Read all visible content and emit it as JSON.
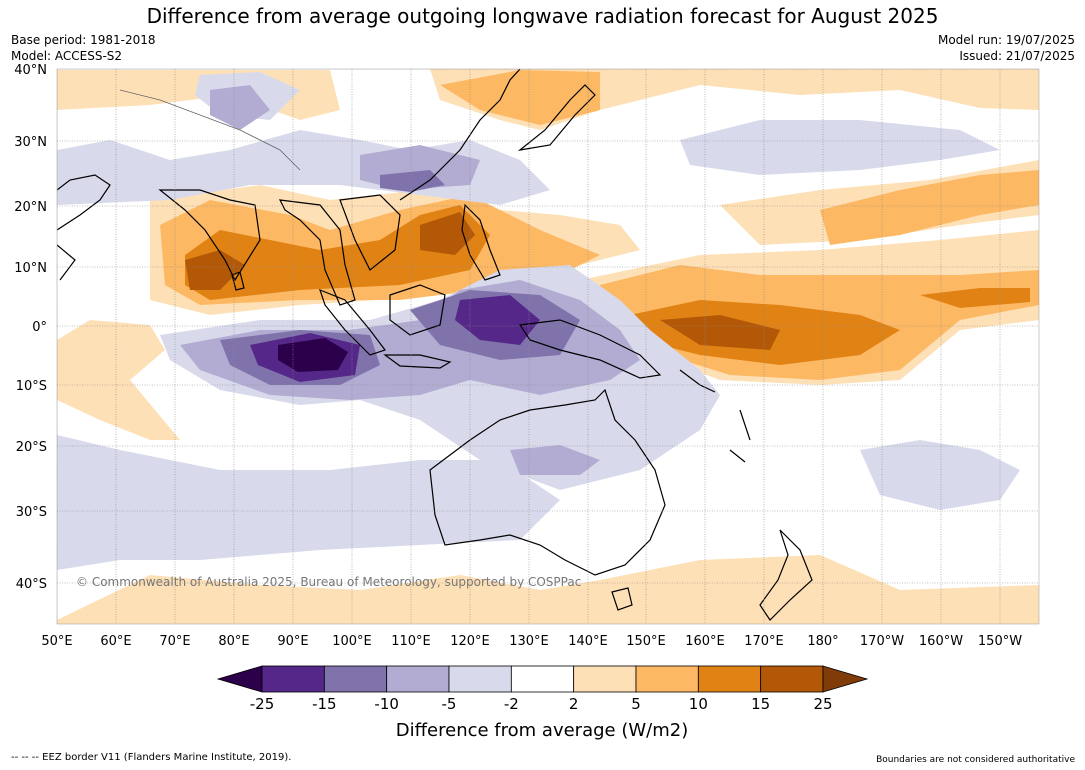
{
  "title": "Difference from average outgoing longwave radiation forecast for August 2025",
  "meta_left": [
    "Base period: 1981-2018",
    "Model: ACCESS-S2"
  ],
  "meta_right": [
    "Model run: 19/07/2025",
    "Issued: 21/07/2025"
  ],
  "map": {
    "lat_labels": [
      "40°N",
      "30°N",
      "20°N",
      "10°N",
      "0°",
      "10°S",
      "20°S",
      "30°S",
      "40°S"
    ],
    "lon_labels": [
      "50°E",
      "60°E",
      "70°E",
      "80°E",
      "90°E",
      "100°E",
      "110°E",
      "120°E",
      "130°E",
      "140°E",
      "150°E",
      "160°E",
      "170°E",
      "180°",
      "170°W",
      "160°W",
      "150°W"
    ],
    "copyright": "© Commonwealth of Australia 2025, Bureau of Meteorology, supported by COSPPac",
    "palette": {
      "lt_m25": "#2d004b",
      "m25_m15": "#542788",
      "m15_m10": "#8073ac",
      "m10_m5": "#b2abd2",
      "m5_m2": "#d8daeb",
      "m2_2": "#ffffff",
      "p2_5": "#fee0b6",
      "p5_10": "#fdb863",
      "p10_15": "#e08214",
      "p15_25": "#b35806",
      "gt_25": "#7f3b08"
    }
  },
  "colorbar": {
    "title": "Difference from average (W/m2)",
    "labels": [
      "-25",
      "-15",
      "-10",
      "-5",
      "-2",
      "2",
      "5",
      "10",
      "15",
      "25"
    ],
    "colors": [
      "#2d004b",
      "#542788",
      "#8073ac",
      "#b2abd2",
      "#d8daeb",
      "#ffffff",
      "#fee0b6",
      "#fdb863",
      "#e08214",
      "#b35806",
      "#7f3b08"
    ]
  },
  "footer_left": "--  --  -- EEZ border V11 (Flanders Marine Institute, 2019).",
  "footer_right": "Boundaries are not considered authoritative"
}
